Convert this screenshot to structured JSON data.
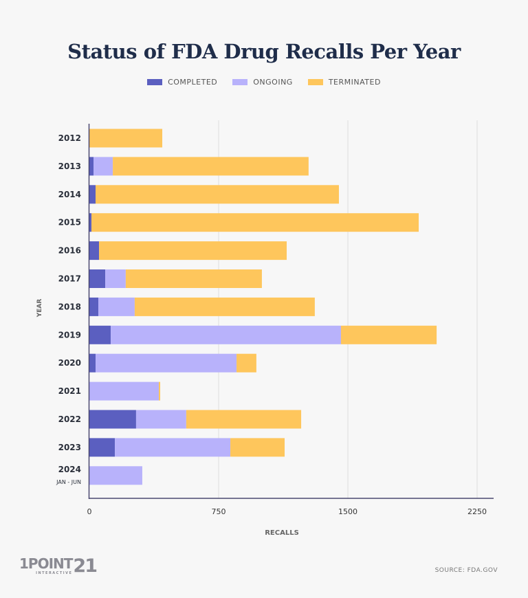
{
  "chart_data": {
    "type": "bar",
    "orientation": "horizontal",
    "stacked": true,
    "title": "Status of FDA Drug Recalls Per Year",
    "xlabel": "RECALLS",
    "ylabel": "YEAR",
    "xlim": [
      0,
      2350
    ],
    "xticks": [
      0,
      750,
      1500,
      2250
    ],
    "grid": true,
    "legend_position": "top-center",
    "categories": [
      "2012",
      "2013",
      "2014",
      "2015",
      "2016",
      "2017",
      "2018",
      "2019",
      "2020",
      "2021",
      "2022",
      "2023",
      "2024"
    ],
    "category_sublabels": {
      "2024": "JAN - JUN"
    },
    "series": [
      {
        "name": "COMPLETED",
        "color": "#5b5fc0",
        "values": [
          0,
          24,
          36,
          12,
          56,
          92,
          52,
          124,
          36,
          0,
          271,
          148,
          0
        ]
      },
      {
        "name": "ONGOING",
        "color": "#b8b2fb",
        "values": [
          0,
          112,
          0,
          0,
          0,
          119,
          211,
          1336,
          818,
          403,
          291,
          670,
          307
        ]
      },
      {
        "name": "TERMINATED",
        "color": "#fec65c",
        "values": [
          423,
          1136,
          1412,
          1899,
          1089,
          790,
          1045,
          555,
          115,
          8,
          667,
          315,
          0
        ]
      }
    ]
  },
  "source": "SOURCE: FDA.GOV",
  "logo": {
    "main": "1POINT",
    "number": "21",
    "sub": "INTERACTIVE"
  }
}
